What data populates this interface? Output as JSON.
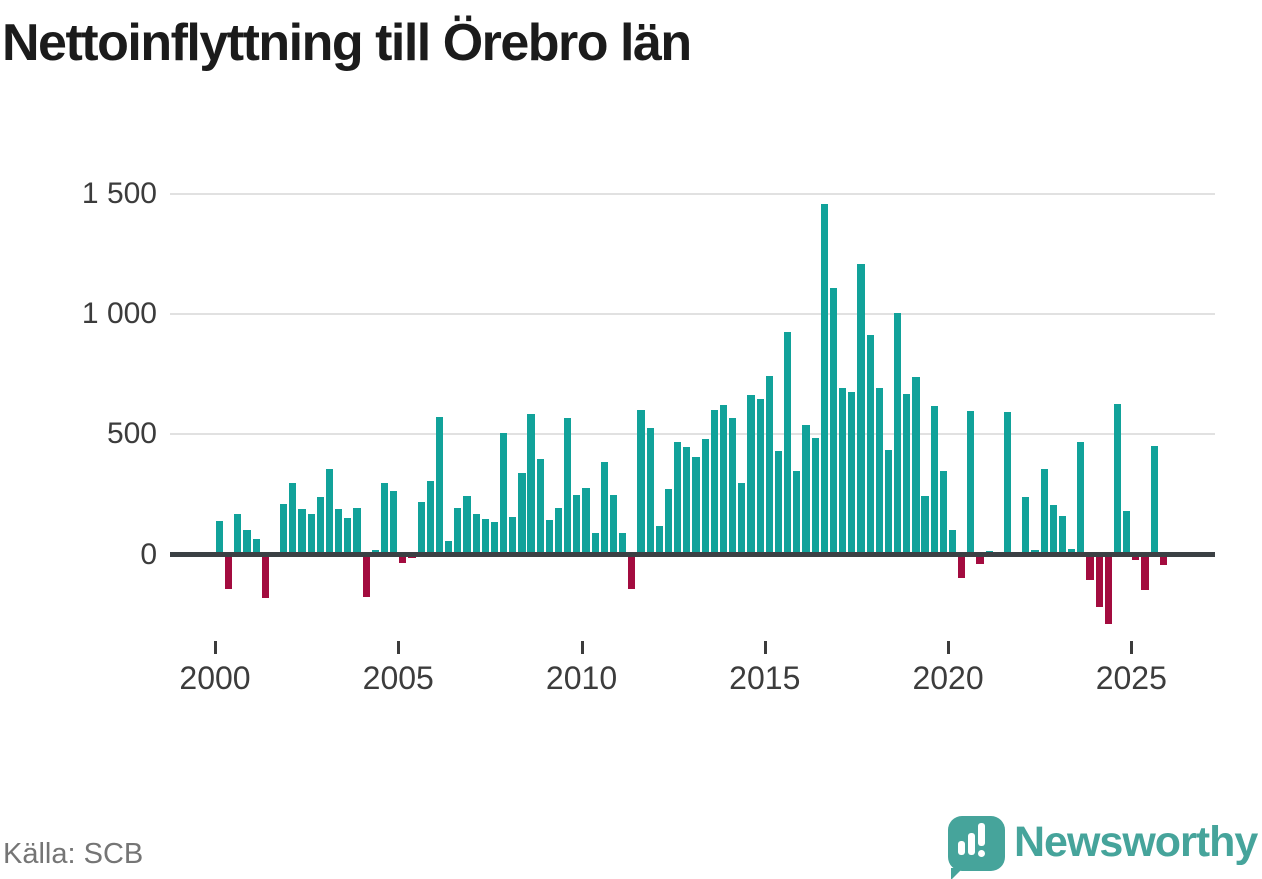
{
  "title": "Nettoinflyttning till Örebro län",
  "source_text": "Källa: SCB",
  "branding": {
    "name": "Newsworthy",
    "icon": "speech-bubble-bar-chart-exclamation-icon"
  },
  "colors": {
    "bar_positive": "#11a29a",
    "bar_negative": "#a30c3f",
    "axis_line": "#3b4044",
    "gridline": "#e1e1e1",
    "tick_label": "#3c3c3c",
    "title": "#1b1b1b",
    "source": "#757575",
    "brand": "#46a49b"
  },
  "chart_data": {
    "type": "bar",
    "title": "Nettoinflyttning till Örebro län",
    "xlabel": "",
    "ylabel": "",
    "frequency": "quarterly",
    "x_start": "2000-Q1",
    "x_end": "2025-Q4",
    "ylim": [
      -320,
      1560
    ],
    "grid": "horizontal",
    "legend": "none",
    "y_ticks": [
      1500,
      1000,
      500,
      0
    ],
    "y_tick_labels": [
      "1 500",
      "1 000",
      "500",
      "0"
    ],
    "x_tick_labels": [
      "2000",
      "2005",
      "2010",
      "2015",
      "2020",
      "2025"
    ],
    "values": [
      140,
      -142,
      168,
      101,
      64,
      -181,
      0,
      210,
      297,
      189,
      169,
      238,
      358,
      189,
      154,
      192,
      -176,
      19,
      296,
      264,
      -35,
      -15,
      219,
      308,
      574,
      56,
      192,
      244,
      167,
      150,
      136,
      507,
      158,
      339,
      583,
      396,
      142,
      193,
      567,
      249,
      275,
      89,
      385,
      246,
      90,
      -142,
      601,
      525,
      119,
      271,
      469,
      449,
      404,
      479,
      601,
      622,
      567,
      296,
      664,
      648,
      743,
      433,
      925,
      347,
      540,
      485,
      1460,
      1108,
      692,
      676,
      1208,
      914,
      692,
      437,
      1004,
      669,
      740,
      244,
      620,
      347,
      104,
      -97,
      597,
      -38,
      15,
      0,
      595,
      0,
      240,
      20,
      356,
      208,
      161,
      22,
      467,
      -107,
      -218,
      -288,
      626,
      181,
      -21,
      -146,
      453,
      -44
    ]
  }
}
